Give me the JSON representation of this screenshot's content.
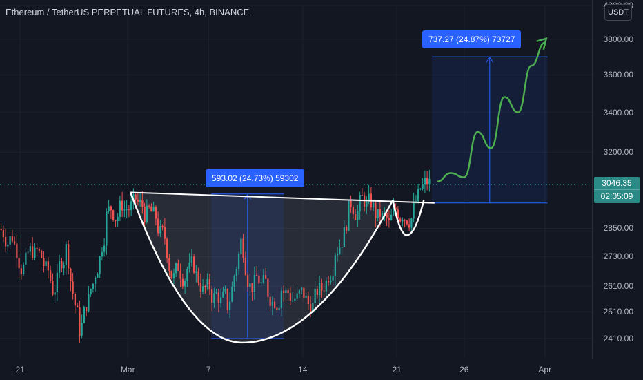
{
  "title": "Ethereum / TetherUS PERPETUAL FUTURES, 4h, BINANCE",
  "currency_button": "USDT",
  "last_price": {
    "value": "3046.35",
    "countdown": "02:05:09"
  },
  "colors": {
    "background": "#131722",
    "up": "#26a69a",
    "down": "#ef5350",
    "pattern_line": "#ffffff",
    "projection": "#4caf50",
    "measure": "#2962ff"
  },
  "measurements": [
    {
      "label": "593.02 (24.73%) 59302",
      "from": 2410,
      "to": 3003
    },
    {
      "label": "737.27 (24.87%) 73727",
      "from": 2962,
      "to": 3700
    }
  ],
  "chart_data": {
    "type": "candlestick",
    "title": "Ethereum / TetherUS PERPETUAL FUTURES, 4h, BINANCE",
    "y_ticks": [
      "2410.00",
      "2510.00",
      "2610.00",
      "2730.00",
      "2850.00",
      "3200.00",
      "3400.00",
      "3600.00",
      "3800.00",
      "4000.00"
    ],
    "y_tick_values": [
      2410,
      2510,
      2610,
      2730,
      2850,
      3200,
      3400,
      3600,
      3800,
      4000
    ],
    "x_ticks": [
      "21",
      "Mar",
      "7",
      "14",
      "21",
      "26",
      "Apr"
    ],
    "x_tick_values": [
      -8,
      0,
      6,
      13,
      20,
      25,
      31
    ],
    "x_range_days": [
      -9.5,
      34.5
    ],
    "y_scale": "log",
    "y_range": [
      2340,
      4000
    ],
    "current_price": 3046.35,
    "series": [
      {
        "data_description": "approximate daily closes, day 0 = Mar 1",
        "days": [
          -9,
          -8,
          -7,
          -6,
          -5,
          -4,
          -3,
          -2,
          -1,
          0,
          1,
          2,
          3,
          4,
          5,
          6,
          7,
          8,
          9,
          10,
          11,
          12,
          13,
          14,
          15,
          16,
          17,
          18,
          19,
          20,
          21,
          22
        ],
        "close": [
          2820,
          2700,
          2740,
          2600,
          2760,
          2450,
          2620,
          2900,
          2930,
          2950,
          2900,
          2820,
          2640,
          2680,
          2620,
          2560,
          2540,
          2790,
          2610,
          2590,
          2600,
          2560,
          2540,
          2600,
          2760,
          2920,
          2980,
          2920,
          2860,
          2920,
          2970,
          3046
        ]
      }
    ],
    "projection": {
      "days": [
        23,
        24,
        25,
        26,
        27,
        28,
        29,
        30,
        31
      ],
      "values": [
        3060,
        3100,
        3080,
        3300,
        3220,
        3480,
        3400,
        3650,
        3780
      ]
    }
  }
}
